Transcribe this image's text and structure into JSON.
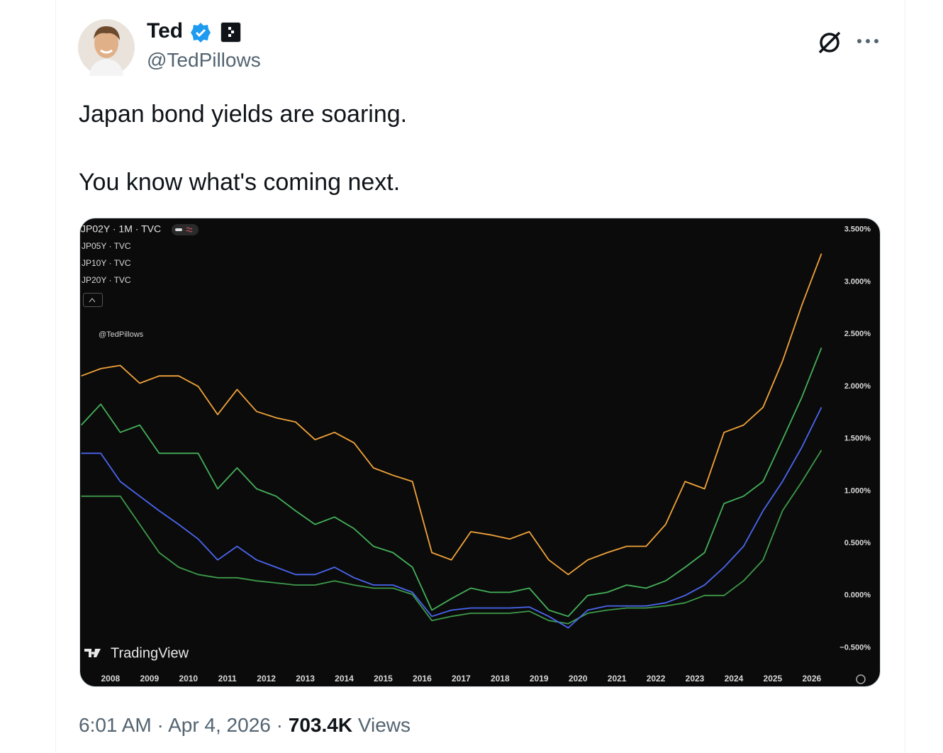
{
  "author": {
    "name": "Ted",
    "handle": "@TedPillows"
  },
  "text": [
    "Japan bond yields are soaring.",
    "You know what's coming next."
  ],
  "footer": {
    "time": "6:01 AM",
    "separator": "·",
    "date": "Apr 4, 2026",
    "views_count": "703.4K",
    "views_label": "Views"
  },
  "chart_data": {
    "type": "line",
    "watermark": "@TedPillows",
    "source": "TradingView",
    "y_axis_side": "right",
    "grid": false,
    "x": [
      2007.25,
      2007.75,
      2008.25,
      2008.75,
      2009.25,
      2009.75,
      2010.25,
      2010.75,
      2011.25,
      2011.75,
      2012.25,
      2012.75,
      2013.25,
      2013.75,
      2014.25,
      2014.75,
      2015.25,
      2015.75,
      2016.25,
      2016.75,
      2017.25,
      2017.75,
      2018.25,
      2018.75,
      2019.25,
      2019.75,
      2020.25,
      2020.75,
      2021.25,
      2021.75,
      2022.25,
      2022.75,
      2023.25,
      2023.75,
      2024.25,
      2024.75,
      2025.25,
      2025.75,
      2026.25
    ],
    "series": [
      {
        "name": "JP02Y · 1M · TVC",
        "color": "#3d9a4a",
        "values": [
          0.95,
          0.95,
          0.95,
          0.68,
          0.41,
          0.27,
          0.2,
          0.17,
          0.17,
          0.14,
          0.12,
          0.1,
          0.1,
          0.14,
          0.1,
          0.07,
          0.07,
          0.01,
          -0.24,
          -0.2,
          -0.17,
          -0.17,
          -0.17,
          -0.15,
          -0.24,
          -0.27,
          -0.17,
          -0.14,
          -0.12,
          -0.12,
          -0.1,
          -0.07,
          0,
          0,
          0.14,
          0.34,
          0.81,
          1.09,
          1.39
        ]
      },
      {
        "name": "JP05Y · TVC",
        "color": "#4a66f0",
        "values": [
          1.36,
          1.36,
          1.09,
          0.95,
          0.81,
          0.68,
          0.54,
          0.34,
          0.47,
          0.34,
          0.27,
          0.2,
          0.2,
          0.27,
          0.17,
          0.1,
          0.1,
          0.03,
          -0.2,
          -0.14,
          -0.12,
          -0.12,
          -0.12,
          -0.11,
          -0.2,
          -0.31,
          -0.14,
          -0.1,
          -0.1,
          -0.1,
          -0.07,
          0,
          0.1,
          0.27,
          0.47,
          0.81,
          1.09,
          1.42,
          1.8
        ]
      },
      {
        "name": "JP10Y · TVC",
        "color": "#44b05a",
        "values": [
          1.63,
          1.83,
          1.56,
          1.63,
          1.36,
          1.36,
          1.36,
          1.02,
          1.22,
          1.02,
          0.95,
          0.81,
          0.68,
          0.75,
          0.64,
          0.47,
          0.41,
          0.27,
          -0.14,
          -0.03,
          0.07,
          0.03,
          0.03,
          0.07,
          -0.14,
          -0.2,
          0,
          0.03,
          0.1,
          0.07,
          0.14,
          0.27,
          0.41,
          0.88,
          0.95,
          1.09,
          1.49,
          1.9,
          2.37
        ]
      },
      {
        "name": "JP20Y · TVC",
        "color": "#f2a33a",
        "values": [
          2.1,
          2.17,
          2.2,
          2.03,
          2.1,
          2.1,
          2.0,
          1.73,
          1.97,
          1.76,
          1.7,
          1.66,
          1.49,
          1.56,
          1.46,
          1.22,
          1.15,
          1.09,
          0.41,
          0.34,
          0.61,
          0.58,
          0.54,
          0.61,
          0.34,
          0.2,
          0.34,
          0.41,
          0.47,
          0.47,
          0.68,
          1.09,
          1.02,
          1.56,
          1.63,
          1.8,
          2.24,
          2.78,
          3.27
        ]
      }
    ],
    "xlim": [
      2007.22,
      2026.64
    ],
    "xticks": [
      2008,
      2009,
      2010,
      2011,
      2012,
      2013,
      2014,
      2015,
      2016,
      2017,
      2018,
      2019,
      2020,
      2021,
      2022,
      2023,
      2024,
      2025,
      2026
    ],
    "ylim": [
      -0.72,
      3.6
    ],
    "yticks": [
      {
        "value": 3.5,
        "label": "3.500%"
      },
      {
        "value": 3,
        "label": "3.000%"
      },
      {
        "value": 2.5,
        "label": "2.500%"
      },
      {
        "value": 2,
        "label": "2.000%"
      },
      {
        "value": 1.5,
        "label": "1.500%"
      },
      {
        "value": 1,
        "label": "1.000%"
      },
      {
        "value": 0.5,
        "label": "0.500%"
      },
      {
        "value": 0,
        "label": "0.000%"
      },
      {
        "value": -0.5,
        "label": "−0.500%"
      }
    ]
  }
}
